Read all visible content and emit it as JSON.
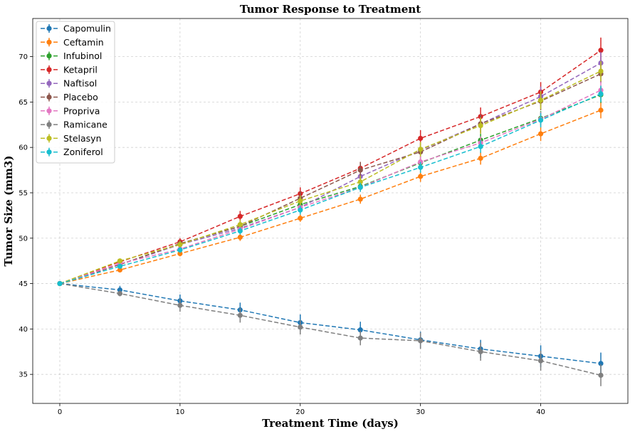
{
  "chart_data": {
    "type": "line",
    "title": "Tumor Response to Treatment",
    "xlabel": "Treatment Time (days)",
    "ylabel": "Tumor Size (mm3)",
    "xlim": [
      -2.25,
      47.25
    ],
    "ylim": [
      31.8,
      74.2
    ],
    "x_ticks": [
      0,
      10,
      20,
      30,
      40
    ],
    "y_ticks": [
      35,
      40,
      45,
      50,
      55,
      60,
      65,
      70
    ],
    "grid": true,
    "legend_position": "top-left",
    "line_style": "dashed with circle markers and error bars",
    "x": [
      0,
      5,
      10,
      15,
      20,
      25,
      30,
      35,
      40,
      45
    ],
    "series": [
      {
        "name": "Capomulin",
        "color": "#1f77b4",
        "values": [
          45.0,
          44.3,
          43.1,
          42.1,
          40.7,
          39.9,
          38.8,
          37.8,
          37.0,
          36.2
        ],
        "errors": [
          0.0,
          0.45,
          0.7,
          0.8,
          0.9,
          0.9,
          0.9,
          1.0,
          1.2,
          1.2
        ]
      },
      {
        "name": "Ceftamin",
        "color": "#ff7f0e",
        "values": [
          45.0,
          46.5,
          48.3,
          50.1,
          52.2,
          54.3,
          56.8,
          58.8,
          61.5,
          64.1
        ],
        "errors": [
          0.0,
          0.2,
          0.3,
          0.4,
          0.4,
          0.5,
          0.6,
          0.7,
          0.8,
          0.9
        ]
      },
      {
        "name": "Infubinol",
        "color": "#2ca02c",
        "values": [
          45.0,
          47.1,
          49.4,
          51.3,
          53.7,
          55.7,
          58.3,
          60.8,
          63.2,
          65.8
        ],
        "errors": [
          0.0,
          0.2,
          0.3,
          0.4,
          0.5,
          0.5,
          0.6,
          0.7,
          0.8,
          0.9
        ]
      },
      {
        "name": "Ketapril",
        "color": "#d62728",
        "values": [
          45.0,
          47.4,
          49.6,
          52.4,
          54.9,
          57.7,
          61.0,
          63.4,
          66.1,
          70.7
        ],
        "errors": [
          0.0,
          0.3,
          0.4,
          0.6,
          0.7,
          0.7,
          0.9,
          1.0,
          1.1,
          1.4
        ]
      },
      {
        "name": "Naftisol",
        "color": "#9467bd",
        "values": [
          45.0,
          47.1,
          49.3,
          51.1,
          53.4,
          56.8,
          59.7,
          62.6,
          65.6,
          69.3
        ],
        "errors": [
          0.0,
          0.3,
          0.4,
          0.5,
          0.6,
          0.7,
          0.8,
          1.0,
          1.1,
          1.2
        ]
      },
      {
        "name": "Placebo",
        "color": "#8c564b",
        "values": [
          45.0,
          47.1,
          49.4,
          51.3,
          54.4,
          57.5,
          59.5,
          62.6,
          65.1,
          68.1
        ],
        "errors": [
          0.0,
          0.2,
          0.4,
          0.6,
          0.8,
          0.9,
          1.0,
          1.0,
          1.0,
          1.0
        ]
      },
      {
        "name": "Propriva",
        "color": "#e377c2",
        "values": [
          45.0,
          47.2,
          48.8,
          51.0,
          53.4,
          55.6,
          58.4,
          60.5,
          63.1,
          66.3
        ],
        "errors": [
          0.0,
          0.2,
          0.3,
          0.4,
          0.4,
          0.5,
          0.6,
          0.7,
          0.8,
          0.9
        ]
      },
      {
        "name": "Ramicane",
        "color": "#7f7f7f",
        "values": [
          45.0,
          43.9,
          42.6,
          41.5,
          40.2,
          39.0,
          38.7,
          37.5,
          36.5,
          34.9
        ],
        "errors": [
          0.0,
          0.3,
          0.7,
          0.8,
          0.8,
          0.8,
          0.9,
          1.0,
          1.1,
          1.2
        ]
      },
      {
        "name": "Stelasyn",
        "color": "#bcbd22",
        "values": [
          45.0,
          47.5,
          49.3,
          51.5,
          54.1,
          56.2,
          59.8,
          62.4,
          65.2,
          68.4
        ],
        "errors": [
          0.0,
          0.2,
          0.4,
          0.5,
          0.6,
          0.7,
          0.8,
          0.9,
          1.0,
          1.1
        ]
      },
      {
        "name": "Zoniferol",
        "color": "#17becf",
        "values": [
          45.0,
          46.9,
          48.7,
          50.8,
          53.1,
          55.6,
          57.8,
          60.1,
          63.0,
          65.9
        ],
        "errors": [
          0.0,
          0.2,
          0.3,
          0.4,
          0.5,
          0.5,
          0.6,
          0.7,
          0.8,
          0.9
        ]
      }
    ]
  }
}
